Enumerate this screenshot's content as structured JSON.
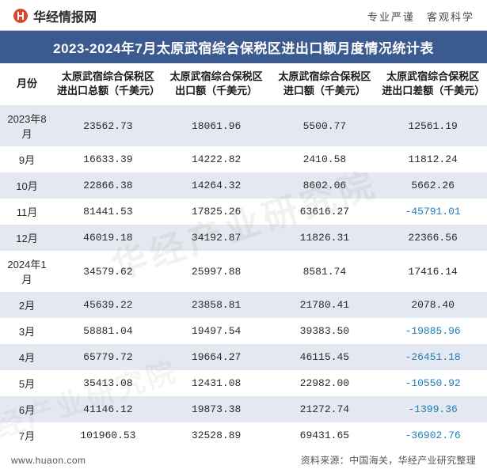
{
  "header": {
    "logo_text": "华经情报网",
    "tagline": "专业严谨　客观科学"
  },
  "title": "2023-2024年7月太原武宿综合保税区进出口额月度情况统计表",
  "colors": {
    "title_bg": "#3b5a8f",
    "title_fg": "#ffffff",
    "row_odd_bg": "#e4e9f1",
    "row_even_bg": "#ffffff",
    "text": "#2a2a2a",
    "negative": "#1e7fb8",
    "border": "#d0d0d0"
  },
  "table": {
    "columns": [
      "月份",
      "太原武宿综合保税区进出口总额（千美元）",
      "太原武宿综合保税区出口额（千美元）",
      "太原武宿综合保税区进口额（千美元）",
      "太原武宿综合保税区进出口差额（千美元）"
    ],
    "rows": [
      {
        "month": "2023年8月",
        "total": "23562.73",
        "export": "18061.96",
        "import": "5500.77",
        "diff": "12561.19",
        "neg": false
      },
      {
        "month": "9月",
        "total": "16633.39",
        "export": "14222.82",
        "import": "2410.58",
        "diff": "11812.24",
        "neg": false
      },
      {
        "month": "10月",
        "total": "22866.38",
        "export": "14264.32",
        "import": "8602.06",
        "diff": "5662.26",
        "neg": false
      },
      {
        "month": "11月",
        "total": "81441.53",
        "export": "17825.26",
        "import": "63616.27",
        "diff": "-45791.01",
        "neg": true
      },
      {
        "month": "12月",
        "total": "46019.18",
        "export": "34192.87",
        "import": "11826.31",
        "diff": "22366.56",
        "neg": false
      },
      {
        "month": "2024年1月",
        "total": "34579.62",
        "export": "25997.88",
        "import": "8581.74",
        "diff": "17416.14",
        "neg": false
      },
      {
        "month": "2月",
        "total": "45639.22",
        "export": "23858.81",
        "import": "21780.41",
        "diff": "2078.40",
        "neg": false
      },
      {
        "month": "3月",
        "total": "58881.04",
        "export": "19497.54",
        "import": "39383.50",
        "diff": "-19885.96",
        "neg": true
      },
      {
        "month": "4月",
        "total": "65779.72",
        "export": "19664.27",
        "import": "46115.45",
        "diff": "-26451.18",
        "neg": true
      },
      {
        "month": "5月",
        "total": "35413.08",
        "export": "12431.08",
        "import": "22982.00",
        "diff": "-10550.92",
        "neg": true
      },
      {
        "month": "6月",
        "total": "41146.12",
        "export": "19873.38",
        "import": "21272.74",
        "diff": "-1399.36",
        "neg": true
      },
      {
        "month": "7月",
        "total": "101960.53",
        "export": "32528.89",
        "import": "69431.65",
        "diff": "-36902.76",
        "neg": true
      }
    ]
  },
  "footer": {
    "left": "www.huaon.com",
    "right": "资料来源：中国海关，华经产业研究整理"
  },
  "watermark": "华经产业研究院"
}
